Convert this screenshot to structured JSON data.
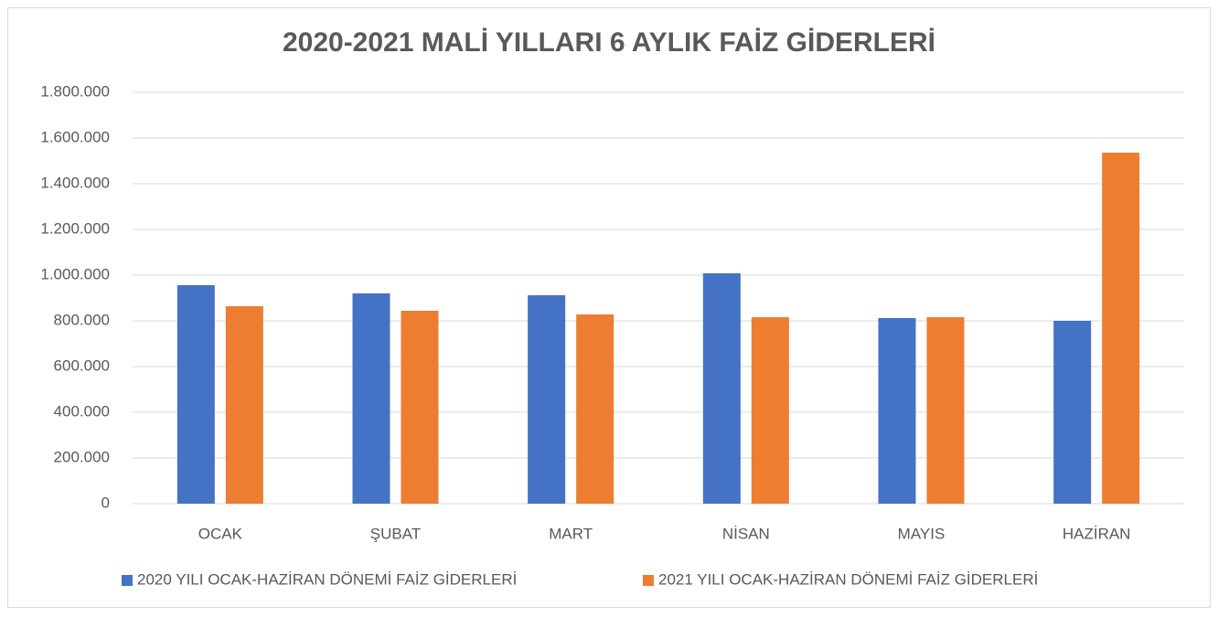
{
  "chart_data": {
    "type": "bar",
    "title": "2020-2021 MALİ YILLARI 6 AYLIK FAİZ GİDERLERİ",
    "categories": [
      "OCAK",
      "ŞUBAT",
      "MART",
      "NİSAN",
      "MAYIS",
      "HAZİRAN"
    ],
    "series": [
      {
        "name": "2020 YILI OCAK-HAZİRAN DÖNEMİ FAİZ GİDERLERİ",
        "color": "#4472c4",
        "values": [
          956000,
          920000,
          912000,
          1008000,
          812000,
          800000
        ]
      },
      {
        "name": "2021 YILI OCAK-HAZİRAN DÖNEMİ FAİZ GİDERLERİ",
        "color": "#ed7d31",
        "values": [
          864000,
          844000,
          828000,
          816000,
          816000,
          1536000
        ]
      }
    ],
    "ylim": [
      0,
      1800000
    ],
    "yticks": [
      0,
      {
        "value": 200000,
        "label": "200.000"
      },
      {
        "value": 400000,
        "label": "400.000"
      },
      {
        "value": 600000,
        "label": "600.000"
      },
      {
        "value": 800000,
        "label": "800.000"
      },
      {
        "value": 1000000,
        "label": "1.000.000"
      },
      {
        "value": 1200000,
        "label": "1.200.000"
      },
      {
        "value": 1400000,
        "label": "1.400.000"
      },
      {
        "value": 1600000,
        "label": "1.600.000"
      },
      {
        "value": 1800000,
        "label": "1.800.000"
      }
    ],
    "grid": true,
    "legend": "bottom"
  }
}
